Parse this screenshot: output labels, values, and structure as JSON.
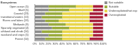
{
  "chart_data": {
    "type": "bar",
    "orientation": "horizontal",
    "stacked": true,
    "title": "Ecosystems",
    "categories": [
      "Open ocean (5)",
      "Shelf (5)",
      "Coastal (23)",
      "Marine inlets and transitional waters (11)",
      "Rivers and lakes (19)",
      "Wetlands (9)",
      "Sparsely vegetated (4)",
      "Heathland and shrub (10)",
      "Grassland and crops (5)",
      "Forest (10)"
    ],
    "series": [
      {
        "name": "Not suitable",
        "color": "#8c8c8c",
        "values": [
          20,
          20,
          15,
          10,
          15,
          20,
          25,
          10,
          20,
          15
        ]
      },
      {
        "name": "Suitable",
        "color": "#9aab3c",
        "values": [
          40,
          30,
          25,
          30,
          20,
          25,
          25,
          30,
          20,
          25
        ]
      },
      {
        "name": "Underexploited/not exploited",
        "color": "#e8d54a",
        "values": [
          25,
          35,
          40,
          40,
          45,
          40,
          35,
          45,
          45,
          40
        ]
      },
      {
        "name": "Overexploited",
        "color": "#a8203a",
        "values": [
          15,
          15,
          20,
          20,
          20,
          15,
          15,
          15,
          15,
          20
        ]
      }
    ],
    "xlim": [
      0,
      100
    ],
    "xticks": [
      {
        "value": 0,
        "label": "0%"
      },
      {
        "value": 10,
        "label": "10%"
      },
      {
        "value": 20,
        "label": "20%"
      },
      {
        "value": 30,
        "label": "30%"
      },
      {
        "value": 40,
        "label": "40%"
      },
      {
        "value": 50,
        "label": "50%"
      },
      {
        "value": 60,
        "label": "60%"
      },
      {
        "value": 70,
        "label": "70%"
      },
      {
        "value": 80,
        "label": "80%"
      },
      {
        "value": 90,
        "label": "90%"
      },
      {
        "value": 100,
        "label": "100%"
      }
    ],
    "grid": true,
    "legend": "right"
  }
}
